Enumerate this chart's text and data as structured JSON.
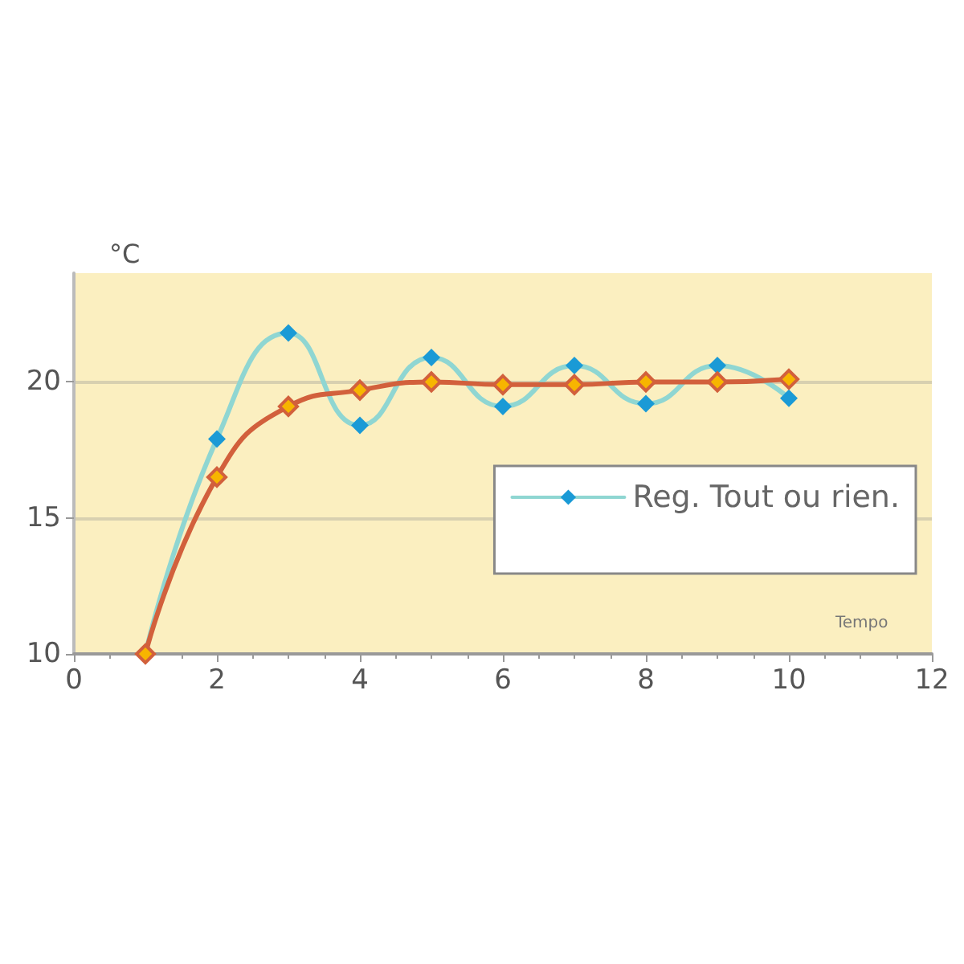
{
  "chart_data": {
    "type": "line",
    "ylabel": "°C",
    "xlabel": "Tempo",
    "x": [
      1,
      2,
      3,
      4,
      5,
      6,
      7,
      8,
      9,
      10
    ],
    "series": [
      {
        "name": "Reg. Tout ou rien.",
        "color": "#1a9ad6",
        "values": [
          10,
          17.9,
          21.8,
          18.4,
          20.9,
          19.1,
          20.6,
          19.2,
          20.6,
          19.4
        ]
      },
      {
        "color": "#d2603c",
        "values": [
          10,
          16.5,
          19.1,
          19.7,
          20,
          19.9,
          19.9,
          20,
          20,
          20.1
        ]
      }
    ],
    "xlim": [
      0,
      12
    ],
    "xticks": [
      0,
      2,
      4,
      6,
      8,
      10,
      12
    ],
    "ylim": [
      10,
      24
    ],
    "yticks": [
      10,
      15,
      20
    ],
    "grid": "y",
    "legend": "right",
    "marker": "diamond",
    "line_style": "solid"
  }
}
